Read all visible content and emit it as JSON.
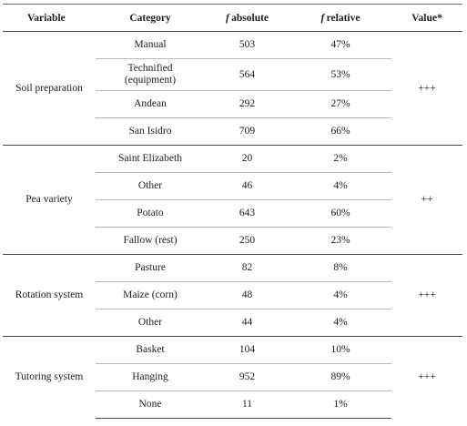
{
  "headers": {
    "variable": "Variable",
    "category": "Category",
    "f_symbol": "f",
    "absolute": "absolute",
    "relative": "relative",
    "value": "Value*"
  },
  "groups": [
    {
      "variable": "Soil preparation",
      "value": "+++",
      "rows": [
        {
          "category": "Manual",
          "absolute": "503",
          "relative": "47%"
        },
        {
          "category": "Technified",
          "category_line2": "(equipment)",
          "absolute": "564",
          "relative": "53%"
        },
        {
          "category": "Andean",
          "absolute": "292",
          "relative": "27%"
        },
        {
          "category": "San Isidro",
          "absolute": "709",
          "relative": "66%"
        }
      ]
    },
    {
      "variable": "Pea variety",
      "value": "++",
      "rows": [
        {
          "category": "Saint Elizabeth",
          "absolute": "20",
          "relative": "2%"
        },
        {
          "category": "Other",
          "absolute": "46",
          "relative": "4%"
        },
        {
          "category": "Potato",
          "absolute": "643",
          "relative": "60%"
        },
        {
          "category": "Fallow (rest)",
          "absolute": "250",
          "relative": "23%"
        }
      ]
    },
    {
      "variable": "Rotation system",
      "value": "+++",
      "rows": [
        {
          "category": "Pasture",
          "absolute": "82",
          "relative": "8%"
        },
        {
          "category": "Maize (corn)",
          "absolute": "48",
          "relative": "4%"
        },
        {
          "category": "Other",
          "absolute": "44",
          "relative": "4%"
        }
      ]
    },
    {
      "variable": "Tutoring system",
      "value": "+++",
      "rows": [
        {
          "category": "Basket",
          "absolute": "104",
          "relative": "10%"
        },
        {
          "category": "Hanging",
          "absolute": "952",
          "relative": "89%"
        },
        {
          "category": "None",
          "absolute": "11",
          "relative": "1%"
        }
      ]
    }
  ]
}
